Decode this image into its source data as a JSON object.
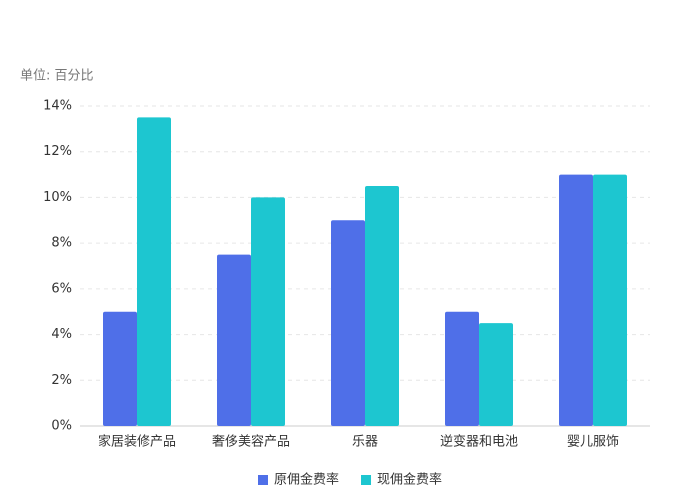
{
  "chart_data": {
    "type": "bar",
    "y_label": "单位: 百分比",
    "categories": [
      "家居装修产品",
      "奢侈美容产品",
      "乐器",
      "逆变器和电池",
      "婴儿服饰"
    ],
    "series": [
      {
        "name": "原佣金费率",
        "color": "#4f6fe8",
        "values": [
          5,
          7.5,
          9,
          5,
          11
        ]
      },
      {
        "name": "现佣金费率",
        "color": "#1dc6d0",
        "values": [
          13.5,
          10,
          10.5,
          4.5,
          11
        ]
      }
    ],
    "ylim": [
      0,
      14
    ],
    "yticks": [
      {
        "value": 0,
        "label": "0%"
      },
      {
        "value": 2,
        "label": "2%"
      },
      {
        "value": 4,
        "label": "4%"
      },
      {
        "value": 6,
        "label": "6%"
      },
      {
        "value": 8,
        "label": "8%"
      },
      {
        "value": 10,
        "label": "10%"
      },
      {
        "value": 12,
        "label": "12%"
      },
      {
        "value": 14,
        "label": "14%"
      }
    ],
    "grid": true,
    "legend": "bottom"
  }
}
